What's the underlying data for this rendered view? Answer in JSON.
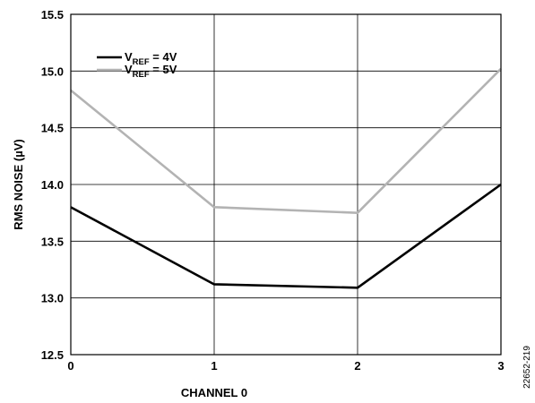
{
  "chart_data": {
    "type": "line",
    "xlabel": "CHANNEL 0",
    "ylabel": "RMS NOISE (µV)",
    "xlim": [
      0,
      3
    ],
    "ylim": [
      12.5,
      15.5
    ],
    "x_ticks": [
      "0",
      "1",
      "2",
      "3"
    ],
    "y_ticks": [
      "12.5",
      "13.0",
      "13.5",
      "14.0",
      "14.5",
      "15.0",
      "15.5"
    ],
    "grid": true,
    "legend_position": "top-left",
    "x": [
      0,
      1,
      2,
      3
    ],
    "series": [
      {
        "legend_main": "V",
        "legend_sub": "REF",
        "legend_rest": " = 4V",
        "color": "#000000",
        "values": [
          13.8,
          13.12,
          13.09,
          14.0
        ]
      },
      {
        "legend_main": "V",
        "legend_sub": "REF",
        "legend_rest": " = 5V",
        "color": "#b3b3b3",
        "values": [
          14.83,
          13.8,
          13.75,
          15.02
        ]
      }
    ],
    "figure_id": "22652-219"
  }
}
